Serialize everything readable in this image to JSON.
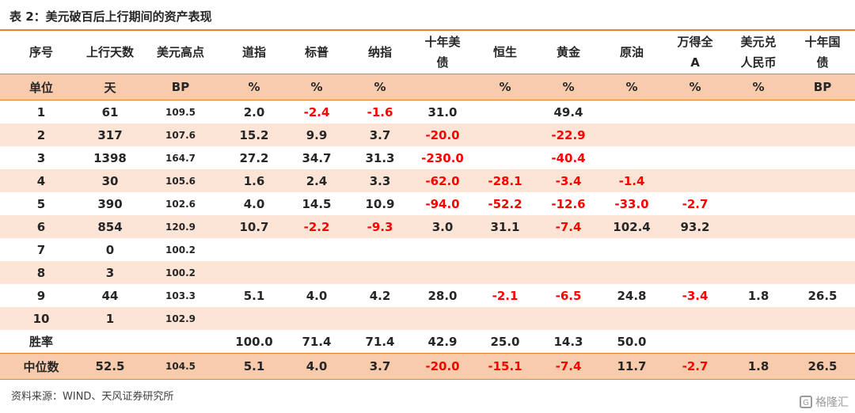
{
  "title": "表 2：美元破百后上行期间的资产表现",
  "columns": [
    [
      "序号"
    ],
    [
      "上行天数"
    ],
    [
      "美元高点"
    ],
    [
      "道指"
    ],
    [
      "标普"
    ],
    [
      "纳指"
    ],
    [
      "十年美",
      "债"
    ],
    [
      "恒生"
    ],
    [
      "黄金"
    ],
    [
      "原油"
    ],
    [
      "万得全",
      "A"
    ],
    [
      "美元兑",
      "人民币"
    ],
    [
      "十年国",
      "债"
    ]
  ],
  "units": [
    "单位",
    "天",
    "BP",
    "%",
    "%",
    "%",
    "",
    "%",
    "%",
    "%",
    "%",
    "%",
    "BP"
  ],
  "rows": [
    [
      "1",
      "61",
      "109.5",
      "2.0",
      "-2.4",
      "-1.6",
      "31.0",
      "",
      "49.4",
      "",
      "",
      "",
      ""
    ],
    [
      "2",
      "317",
      "107.6",
      "15.2",
      "9.9",
      "3.7",
      "-20.0",
      "",
      "-22.9",
      "",
      "",
      "",
      ""
    ],
    [
      "3",
      "1398",
      "164.7",
      "27.2",
      "34.7",
      "31.3",
      "-230.0",
      "",
      "-40.4",
      "",
      "",
      "",
      ""
    ],
    [
      "4",
      "30",
      "105.6",
      "1.6",
      "2.4",
      "3.3",
      "-62.0",
      "-28.1",
      "-3.4",
      "-1.4",
      "",
      "",
      ""
    ],
    [
      "5",
      "390",
      "102.6",
      "4.0",
      "14.5",
      "10.9",
      "-94.0",
      "-52.2",
      "-12.6",
      "-33.0",
      "-2.7",
      "",
      ""
    ],
    [
      "6",
      "854",
      "120.9",
      "10.7",
      "-2.2",
      "-9.3",
      "3.0",
      "31.1",
      "-7.4",
      "102.4",
      "93.2",
      "",
      ""
    ],
    [
      "7",
      "0",
      "100.2",
      "",
      "",
      "",
      "",
      "",
      "",
      "",
      "",
      "",
      ""
    ],
    [
      "8",
      "3",
      "100.2",
      "",
      "",
      "",
      "",
      "",
      "",
      "",
      "",
      "",
      ""
    ],
    [
      "9",
      "44",
      "103.3",
      "5.1",
      "4.0",
      "4.2",
      "28.0",
      "-2.1",
      "-6.5",
      "24.8",
      "-3.4",
      "1.8",
      "26.5"
    ],
    [
      "10",
      "1",
      "102.9",
      "",
      "",
      "",
      "",
      "",
      "",
      "",
      "",
      "",
      ""
    ],
    [
      "胜率",
      "",
      "",
      "100.0",
      "71.4",
      "71.4",
      "42.9",
      "25.0",
      "14.3",
      "50.0",
      "",
      "",
      ""
    ]
  ],
  "median": [
    "中位数",
    "52.5",
    "104.5",
    "5.1",
    "4.0",
    "3.7",
    "-20.0",
    "-15.1",
    "-7.4",
    "11.7",
    "-2.7",
    "1.8",
    "26.5"
  ],
  "source": "资料来源：WIND、天风证券研究所",
  "watermark": "格隆汇",
  "watermark_icon": "G",
  "colors": {
    "accent": "#ED7D31",
    "band": "#F8CBAD",
    "stripe": "#FCE4D6",
    "negative": "#FF0000"
  }
}
